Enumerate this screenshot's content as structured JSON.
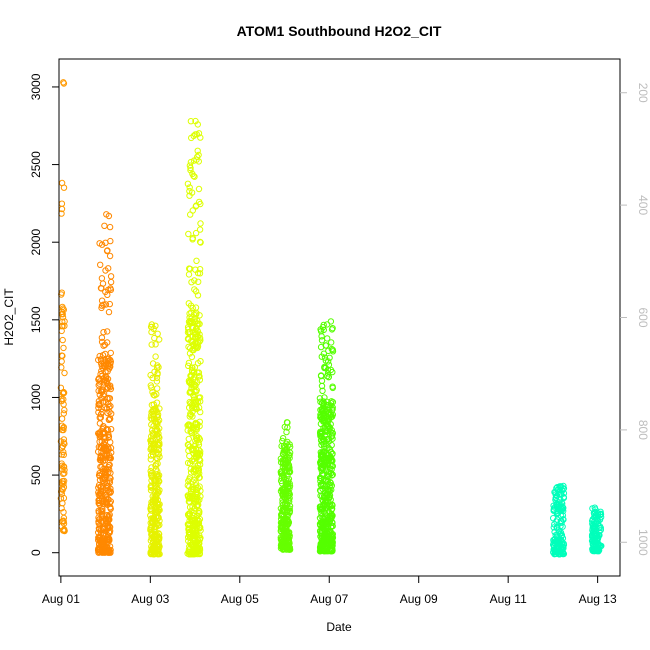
{
  "chart_data": {
    "type": "scatter",
    "title": "ATOM1 Southbound H2O2_CIT",
    "xlabel": "Date",
    "ylabel": "H2O2_CIT",
    "x_unit": "day",
    "xlim": [
      "2016-07-31T23:00",
      "2016-08-13T12:00"
    ],
    "ylim": [
      -150,
      3180
    ],
    "x_ticks": [
      "2016-08-01",
      "2016-08-03",
      "2016-08-05",
      "2016-08-07",
      "2016-08-09",
      "2016-08-11",
      "2016-08-13"
    ],
    "x_tick_labels": [
      "Aug 01",
      "Aug 03",
      "Aug 05",
      "Aug 07",
      "Aug 09",
      "Aug 11",
      "Aug 13"
    ],
    "y_ticks": [
      0,
      500,
      1000,
      1500,
      2000,
      2500,
      3000
    ],
    "y_tick_labels": [
      "0",
      "500",
      "1000",
      "1500",
      "2000",
      "2500",
      "3000"
    ],
    "secondary_axis": {
      "side": "right",
      "color": "#bdbdbd",
      "reversed": true,
      "ylim": [
        1060,
        140
      ],
      "ticks": [
        200,
        400,
        600,
        800,
        1000
      ],
      "tick_labels": [
        "200",
        "400",
        "600",
        "800",
        "1000"
      ]
    },
    "clusters": [
      {
        "x_start": "2016-08-01T00:00",
        "x_end": "2016-08-01T02:00",
        "y_low": 140,
        "y_high": 3030,
        "color": "#ff9900",
        "count": 90
      },
      {
        "x_start": "2016-08-01T20:00",
        "x_end": "2016-08-02T03:00",
        "y_low": 0,
        "y_high": 2180,
        "color": "#ff8800",
        "count": 420
      },
      {
        "x_start": "2016-08-03T00:00",
        "x_end": "2016-08-03T05:00",
        "y_low": -10,
        "y_high": 1470,
        "color": "#e6f200",
        "count": 300
      },
      {
        "x_start": "2016-08-03T20:00",
        "x_end": "2016-08-04T03:00",
        "y_low": -10,
        "y_high": 2780,
        "color": "#ddff00",
        "count": 480
      },
      {
        "x_start": "2016-08-05T22:00",
        "x_end": "2016-08-06T03:00",
        "y_low": 20,
        "y_high": 840,
        "color": "#66ff00",
        "count": 260
      },
      {
        "x_start": "2016-08-06T19:00",
        "x_end": "2016-08-07T02:00",
        "y_low": 10,
        "y_high": 1490,
        "color": "#55ff00",
        "count": 480
      },
      {
        "x_start": "2016-08-12T00:00",
        "x_end": "2016-08-12T06:00",
        "y_low": -10,
        "y_high": 430,
        "color": "#00ffbb",
        "count": 150
      },
      {
        "x_start": "2016-08-12T21:00",
        "x_end": "2016-08-13T02:00",
        "y_low": 10,
        "y_high": 290,
        "color": "#00ffbb",
        "count": 120
      }
    ],
    "secondary_line": {
      "color": "#bdbdbd",
      "points": []
    },
    "grid": false,
    "legend": "none"
  }
}
